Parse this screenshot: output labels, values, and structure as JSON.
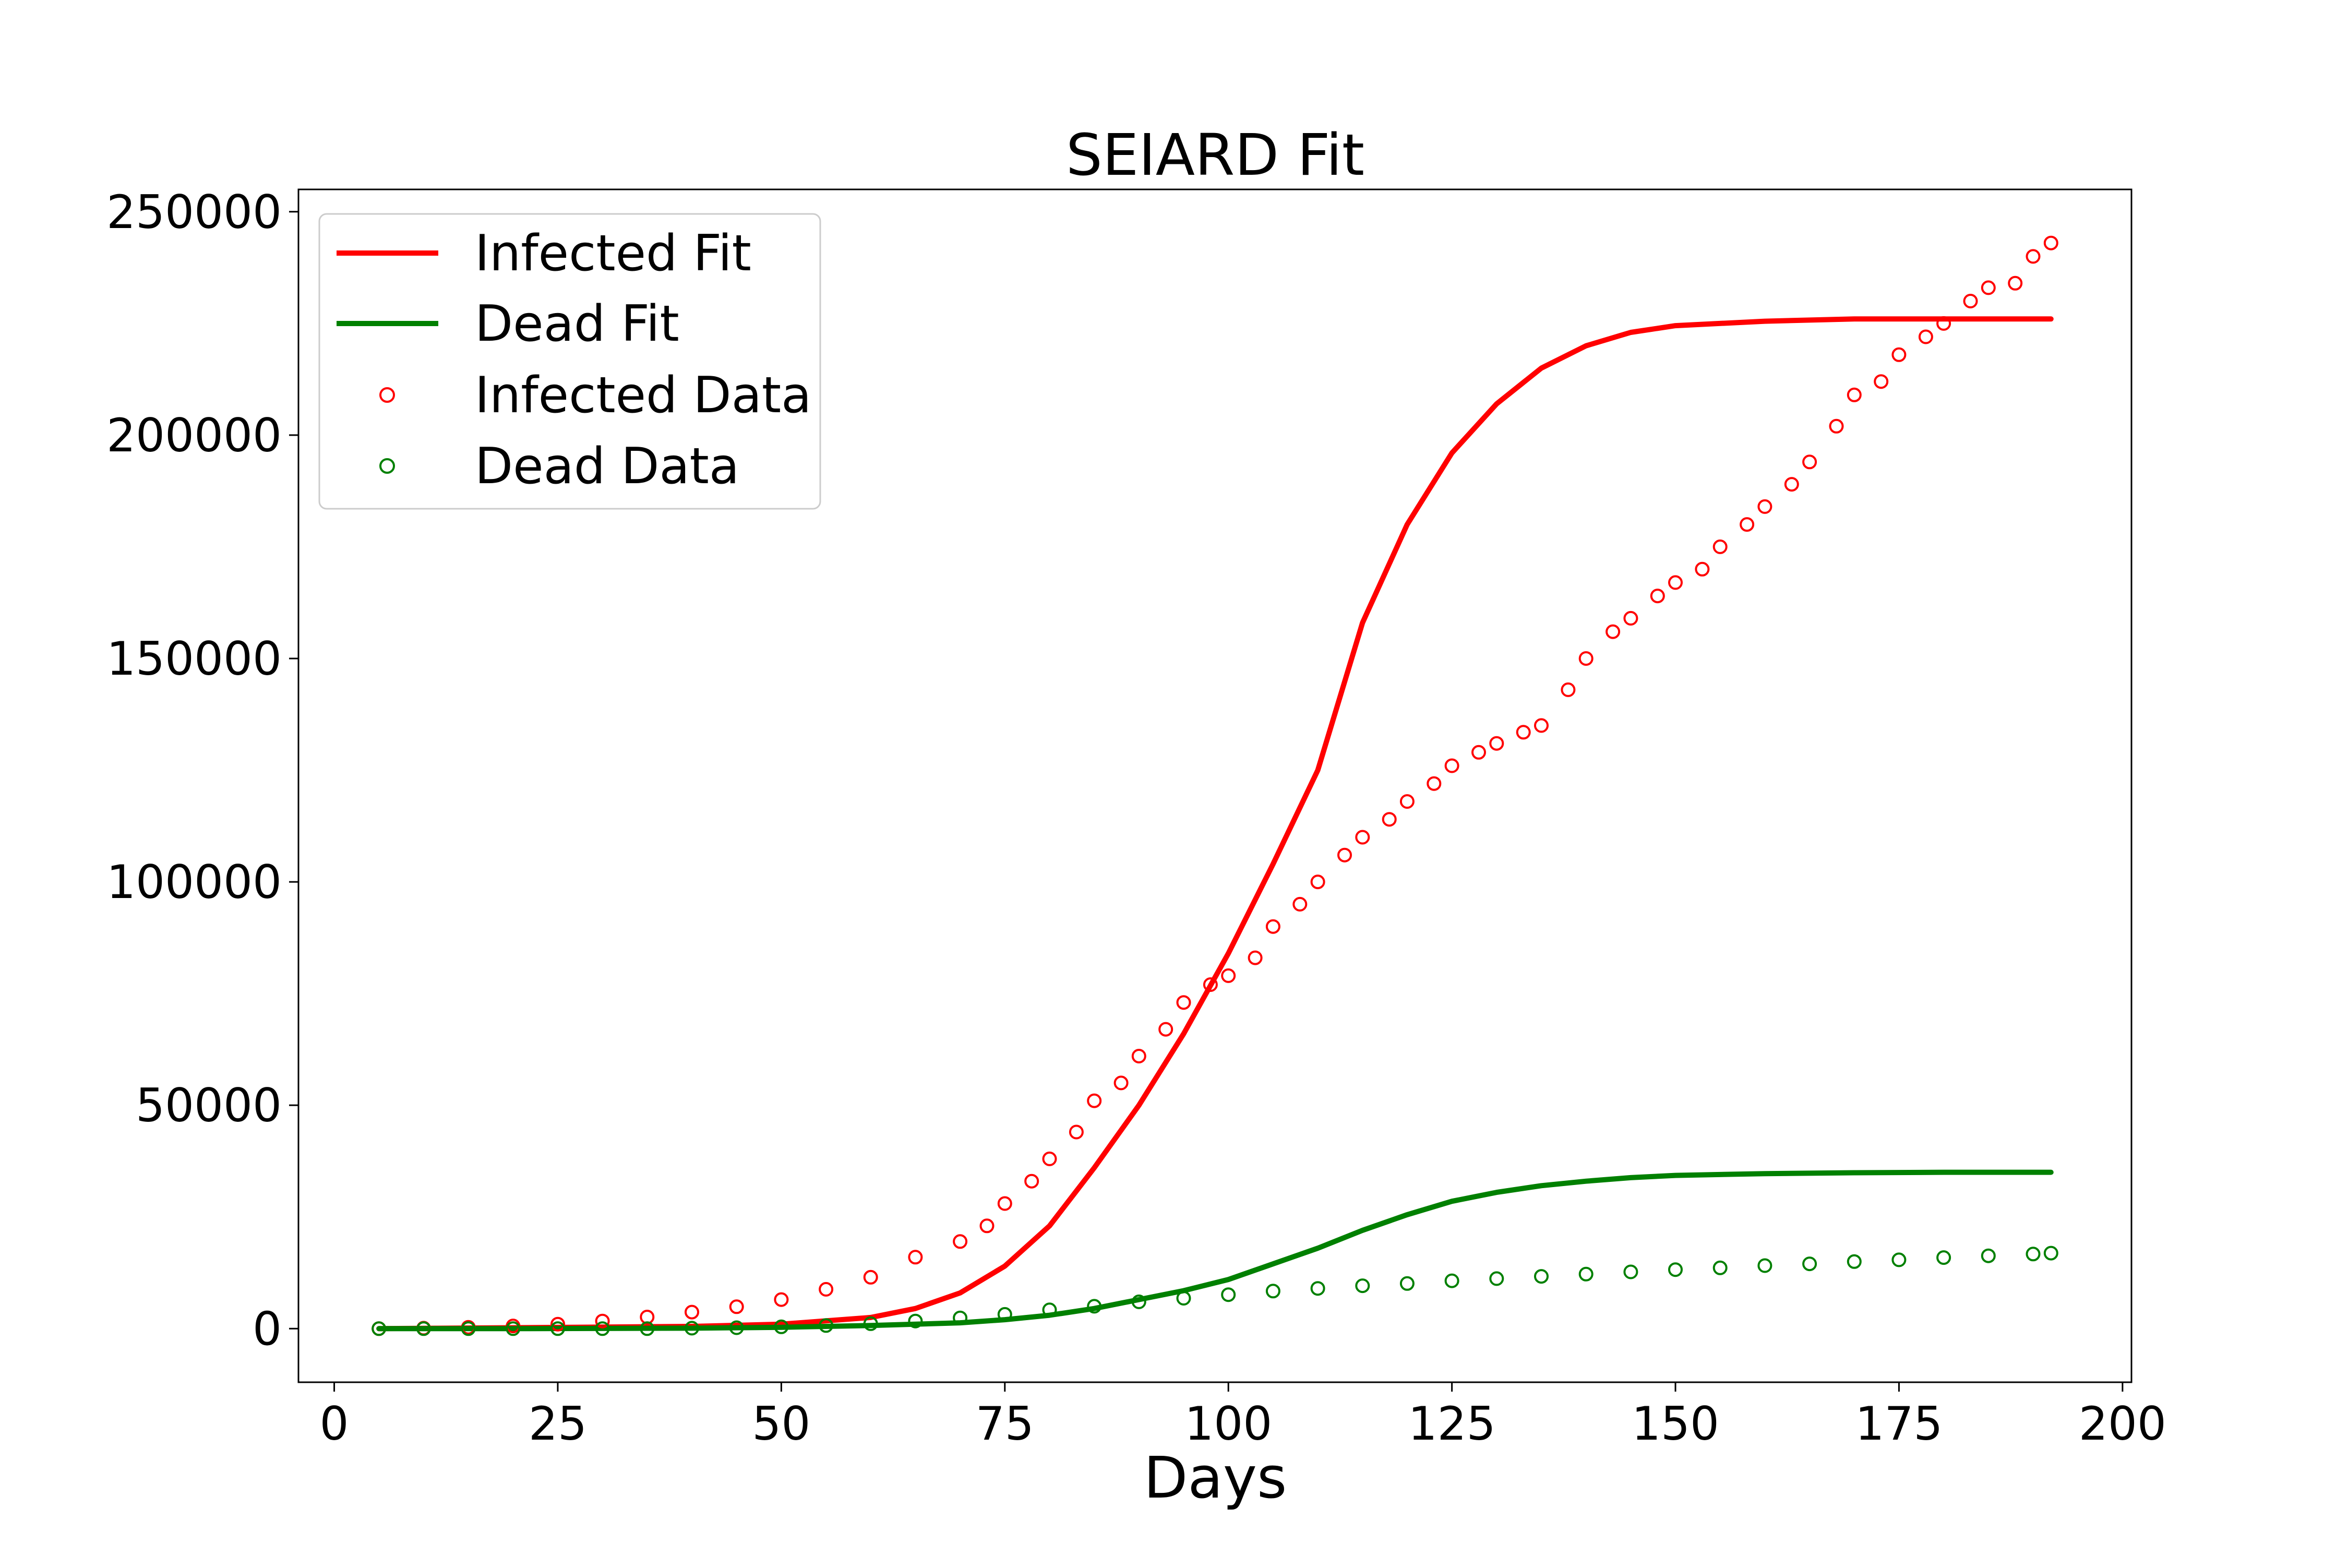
{
  "chart_data": {
    "type": "line",
    "title": "SEIARD Fit",
    "xlabel": "Days",
    "ylabel": "",
    "xlim": [
      -4,
      201
    ],
    "ylim": [
      -12000,
      255000
    ],
    "xticks": [
      0,
      25,
      50,
      75,
      100,
      125,
      150,
      175,
      200
    ],
    "yticks": [
      0,
      50000,
      100000,
      150000,
      200000,
      250000
    ],
    "legend": {
      "position": "upper-left",
      "entries": [
        "Infected Fit",
        "Dead Fit",
        "Infected Data",
        "Dead Data"
      ]
    },
    "colors": {
      "infected": "#ff0000",
      "dead": "#008000"
    },
    "series": [
      {
        "name": "Infected Fit",
        "kind": "line",
        "color": "#ff0000",
        "x": [
          5,
          20,
          40,
          50,
          60,
          65,
          70,
          75,
          80,
          85,
          90,
          95,
          100,
          105,
          110,
          115,
          120,
          125,
          130,
          135,
          140,
          145,
          150,
          160,
          170,
          180,
          192
        ],
        "y": [
          0,
          200,
          500,
          1000,
          2500,
          4500,
          8000,
          14000,
          23000,
          36000,
          50000,
          66000,
          84000,
          104000,
          125000,
          158000,
          180000,
          196000,
          207000,
          215000,
          220000,
          223000,
          224500,
          225500,
          226000,
          226000,
          226000
        ]
      },
      {
        "name": "Dead Fit",
        "kind": "line",
        "color": "#008000",
        "x": [
          5,
          20,
          40,
          50,
          60,
          70,
          75,
          80,
          85,
          90,
          95,
          100,
          105,
          110,
          115,
          120,
          125,
          130,
          135,
          140,
          145,
          150,
          160,
          170,
          180,
          192
        ],
        "y": [
          0,
          0,
          100,
          300,
          700,
          1300,
          2000,
          3000,
          4500,
          6500,
          8500,
          11000,
          14500,
          18000,
          22000,
          25500,
          28500,
          30500,
          32000,
          33000,
          33800,
          34300,
          34700,
          34900,
          35000,
          35000
        ]
      },
      {
        "name": "Infected Data",
        "kind": "scatter",
        "color": "#ff0000",
        "x": [
          5,
          10,
          15,
          20,
          25,
          30,
          35,
          40,
          45,
          50,
          55,
          60,
          65,
          70,
          73,
          75,
          78,
          80,
          83,
          85,
          88,
          90,
          93,
          95,
          98,
          100,
          103,
          105,
          108,
          110,
          113,
          115,
          118,
          120,
          123,
          125,
          128,
          130,
          133,
          135,
          138,
          140,
          143,
          145,
          148,
          150,
          153,
          155,
          158,
          160,
          163,
          165,
          168,
          170,
          173,
          175,
          178,
          180,
          183,
          185,
          188,
          190,
          192
        ],
        "y": [
          0,
          100,
          300,
          600,
          1000,
          1700,
          2600,
          3700,
          4900,
          6500,
          8800,
          11500,
          16000,
          19500,
          23000,
          28000,
          33000,
          38000,
          44000,
          51000,
          55000,
          61000,
          67000,
          73000,
          77000,
          79000,
          83000,
          90000,
          95000,
          100000,
          106000,
          110000,
          114000,
          118000,
          122000,
          126000,
          129000,
          131000,
          133500,
          135000,
          143000,
          150000,
          156000,
          159000,
          164000,
          167000,
          170000,
          175000,
          180000,
          184000,
          189000,
          194000,
          202000,
          209000,
          212000,
          218000,
          222000,
          225000,
          230000,
          233000,
          234000,
          240000,
          243000
        ]
      },
      {
        "name": "Dead Data",
        "kind": "scatter",
        "color": "#008000",
        "x": [
          5,
          10,
          15,
          20,
          25,
          30,
          35,
          40,
          45,
          50,
          55,
          60,
          65,
          70,
          75,
          80,
          85,
          90,
          95,
          100,
          105,
          110,
          115,
          120,
          125,
          130,
          135,
          140,
          145,
          150,
          155,
          160,
          165,
          170,
          175,
          180,
          185,
          190,
          192
        ],
        "y": [
          0,
          0,
          0,
          0,
          0,
          0,
          0,
          100,
          200,
          400,
          700,
          1100,
          1700,
          2400,
          3200,
          4200,
          5000,
          6000,
          6800,
          7600,
          8400,
          9000,
          9600,
          10100,
          10700,
          11200,
          11700,
          12200,
          12700,
          13200,
          13600,
          14100,
          14500,
          15000,
          15400,
          15900,
          16300,
          16700,
          16900
        ]
      }
    ]
  }
}
